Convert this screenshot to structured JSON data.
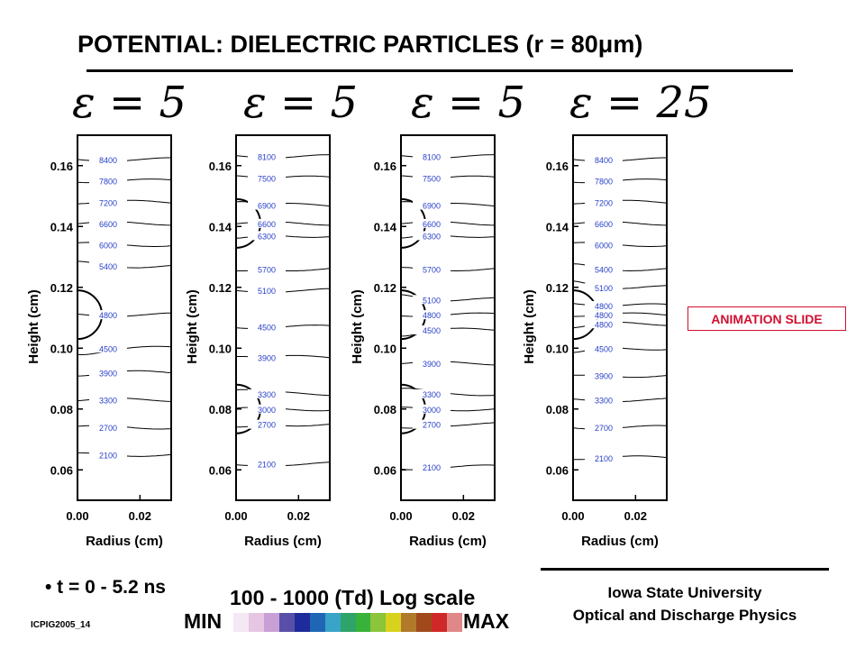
{
  "slide": {
    "title": "POTENTIAL: DIELECTRIC PARTICLES  (r = 80μm)",
    "animation_badge": "ANIMATION SLIDE",
    "bullet": "• t = 0 - 5.2 ns",
    "scale_label": "100 - 1000 (Td)  Log scale",
    "min_label": "MIN",
    "max_label": "MAX",
    "colorbar_colors": [
      "#f4e8f4",
      "#e6c6e2",
      "#c8a0d6",
      "#5a4fa8",
      "#1f2b9a",
      "#1f66b5",
      "#3aa4c8",
      "#2ea36a",
      "#38b23a",
      "#8cc43a",
      "#d8d21e",
      "#b07a2a",
      "#a04a1c",
      "#d02828",
      "#e08888"
    ],
    "institution": "Iowa State University",
    "lab": "Optical and Discharge Physics",
    "code": "ICPIG2005_14",
    "colors": {
      "contour_label": "#2840c8",
      "badge": "#d01030"
    }
  },
  "chart_data": [
    {
      "type": "contour",
      "epsilon_label": "ε = 5",
      "xlabel": "Radius (cm)",
      "ylabel": "Height (cm)",
      "xlim": [
        0,
        0.03
      ],
      "ylim": [
        0.05,
        0.17
      ],
      "xticks": [
        "0.00",
        "0.02"
      ],
      "yticks": [
        "0.06",
        "0.08",
        "0.10",
        "0.12",
        "0.14",
        "0.16"
      ],
      "particles": [
        {
          "center_height": 0.111,
          "radius": 0.008
        }
      ],
      "contours": [
        {
          "level": "8400",
          "y": 0.162
        },
        {
          "level": "7800",
          "y": 0.155
        },
        {
          "level": "7200",
          "y": 0.148
        },
        {
          "level": "6600",
          "y": 0.141
        },
        {
          "level": "6000",
          "y": 0.134
        },
        {
          "level": "5400",
          "y": 0.127
        },
        {
          "level": "4800",
          "y": 0.111
        },
        {
          "level": "4500",
          "y": 0.1
        },
        {
          "level": "3900",
          "y": 0.092
        },
        {
          "level": "3300",
          "y": 0.083
        },
        {
          "level": "2700",
          "y": 0.074
        },
        {
          "level": "2100",
          "y": 0.065
        }
      ]
    },
    {
      "type": "contour",
      "epsilon_label": "ε = 5",
      "xlabel": "Radius (cm)",
      "ylabel": "Height (cm)",
      "xlim": [
        0,
        0.03
      ],
      "ylim": [
        0.05,
        0.17
      ],
      "xticks": [
        "0.00",
        "0.02"
      ],
      "yticks": [
        "0.06",
        "0.08",
        "0.10",
        "0.12",
        "0.14",
        "0.16"
      ],
      "particles": [
        {
          "center_height": 0.141,
          "radius": 0.008
        },
        {
          "center_height": 0.08,
          "radius": 0.008
        }
      ],
      "contours": [
        {
          "level": "8100",
          "y": 0.163
        },
        {
          "level": "7500",
          "y": 0.156
        },
        {
          "level": "6900",
          "y": 0.147
        },
        {
          "level": "6600",
          "y": 0.141
        },
        {
          "level": "6300",
          "y": 0.137
        },
        {
          "level": "5700",
          "y": 0.126
        },
        {
          "level": "5100",
          "y": 0.119
        },
        {
          "level": "4500",
          "y": 0.107
        },
        {
          "level": "3900",
          "y": 0.097
        },
        {
          "level": "3300",
          "y": 0.085
        },
        {
          "level": "3000",
          "y": 0.08
        },
        {
          "level": "2700",
          "y": 0.075
        },
        {
          "level": "2100",
          "y": 0.062
        }
      ]
    },
    {
      "type": "contour",
      "epsilon_label": "ε = 5",
      "xlabel": "Radius (cm)",
      "ylabel": "Height (cm)",
      "xlim": [
        0,
        0.03
      ],
      "ylim": [
        0.05,
        0.17
      ],
      "xticks": [
        "0.00",
        "0.02"
      ],
      "yticks": [
        "0.06",
        "0.08",
        "0.10",
        "0.12",
        "0.14",
        "0.16"
      ],
      "particles": [
        {
          "center_height": 0.141,
          "radius": 0.008
        },
        {
          "center_height": 0.111,
          "radius": 0.008
        },
        {
          "center_height": 0.08,
          "radius": 0.008
        }
      ],
      "contours": [
        {
          "level": "8100",
          "y": 0.163
        },
        {
          "level": "7500",
          "y": 0.156
        },
        {
          "level": "6900",
          "y": 0.147
        },
        {
          "level": "6600",
          "y": 0.141
        },
        {
          "level": "6300",
          "y": 0.137
        },
        {
          "level": "5700",
          "y": 0.126
        },
        {
          "level": "5100",
          "y": 0.116
        },
        {
          "level": "4800",
          "y": 0.111
        },
        {
          "level": "4500",
          "y": 0.106
        },
        {
          "level": "3900",
          "y": 0.095
        },
        {
          "level": "3300",
          "y": 0.085
        },
        {
          "level": "3000",
          "y": 0.08
        },
        {
          "level": "2700",
          "y": 0.075
        },
        {
          "level": "2100",
          "y": 0.061
        }
      ]
    },
    {
      "type": "contour",
      "epsilon_label": "ε = 25",
      "xlabel": "Radius (cm)",
      "ylabel": "Height (cm)",
      "xlim": [
        0,
        0.03
      ],
      "ylim": [
        0.05,
        0.17
      ],
      "xticks": [
        "0.00",
        "0.02"
      ],
      "yticks": [
        "0.06",
        "0.08",
        "0.10",
        "0.12",
        "0.14",
        "0.16"
      ],
      "particles": [
        {
          "center_height": 0.111,
          "radius": 0.008
        }
      ],
      "contours": [
        {
          "level": "8400",
          "y": 0.162
        },
        {
          "level": "7800",
          "y": 0.155
        },
        {
          "level": "7200",
          "y": 0.148
        },
        {
          "level": "6600",
          "y": 0.141
        },
        {
          "level": "6000",
          "y": 0.134
        },
        {
          "level": "5400",
          "y": 0.126
        },
        {
          "level": "5100",
          "y": 0.12
        },
        {
          "level": "4800",
          "y": 0.114
        },
        {
          "level": "4800",
          "y": 0.111
        },
        {
          "level": "4800",
          "y": 0.108
        },
        {
          "level": "4500",
          "y": 0.1
        },
        {
          "level": "3900",
          "y": 0.091
        },
        {
          "level": "3300",
          "y": 0.083
        },
        {
          "level": "2700",
          "y": 0.074
        },
        {
          "level": "2100",
          "y": 0.064
        }
      ]
    }
  ]
}
